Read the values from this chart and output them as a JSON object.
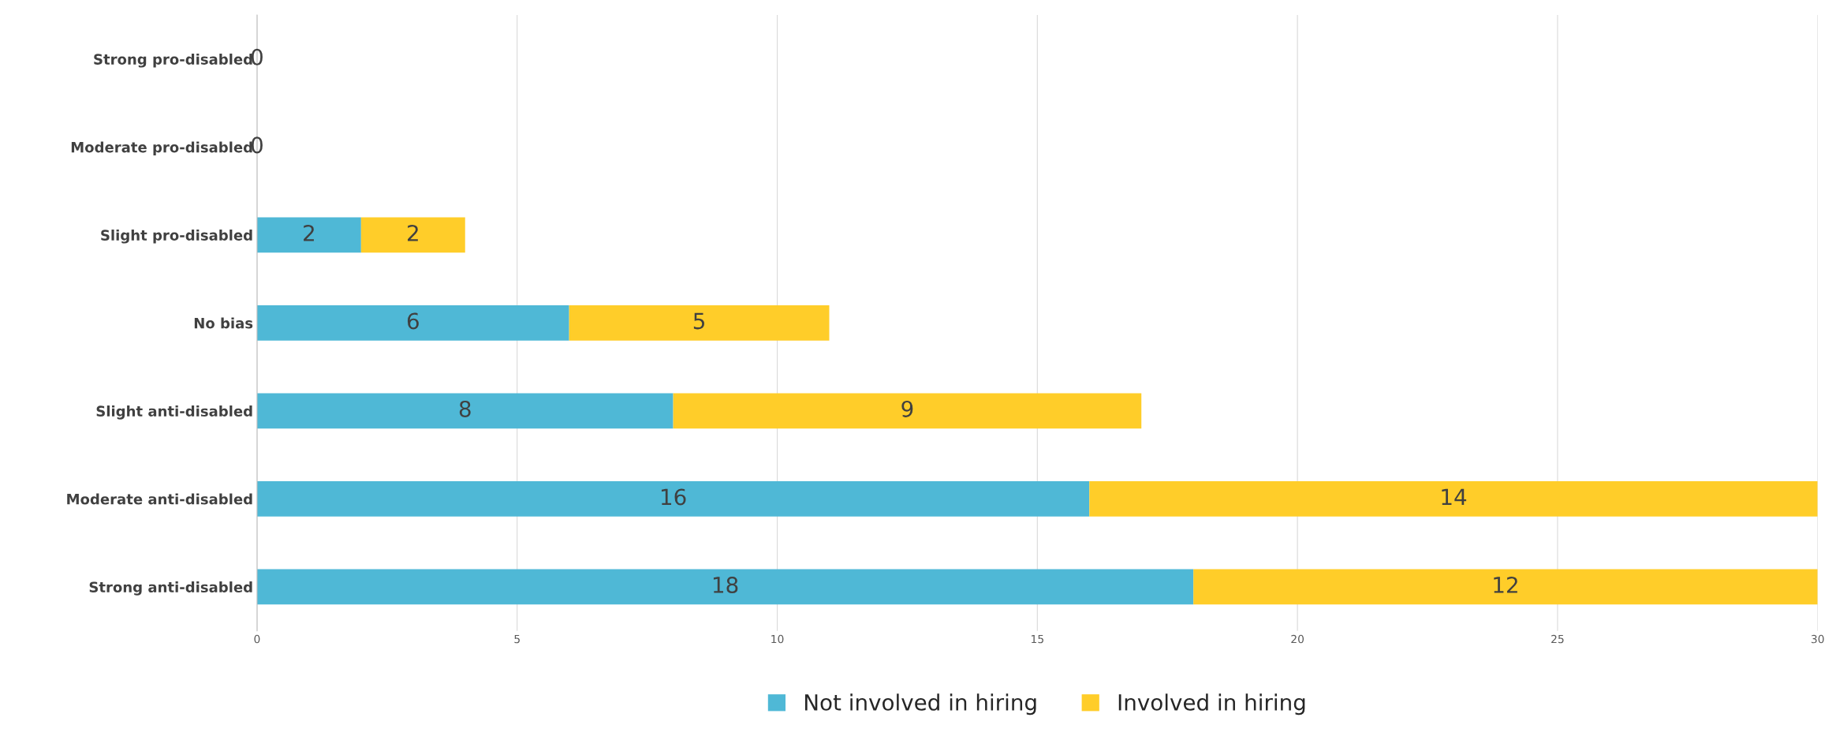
{
  "chart_data": {
    "type": "bar",
    "orientation": "horizontal",
    "stacked": true,
    "categories": [
      "Strong pro-disabled",
      "Moderate pro-disabled",
      "Slight pro-disabled",
      "No bias",
      "Slight anti-disabled",
      "Moderate anti-disabled",
      "Strong anti-disabled"
    ],
    "series": [
      {
        "name": "Not involved in hiring",
        "color": "#4fb8d6",
        "values": [
          0,
          0,
          2,
          6,
          8,
          16,
          18
        ],
        "value_labels": [
          "0",
          "0",
          "2",
          "6",
          "8",
          "16",
          "18"
        ]
      },
      {
        "name": "Involved in hiring",
        "color": "#ffcd29",
        "values": [
          0,
          0,
          2,
          5,
          9,
          14,
          12
        ],
        "value_labels": [
          null,
          null,
          "2",
          "5",
          "9",
          "14",
          "12"
        ]
      }
    ],
    "xlim": [
      0,
      30
    ],
    "xticks": [
      0,
      5,
      10,
      15,
      20,
      25,
      30
    ],
    "grid": "x",
    "legend": "bottom"
  }
}
